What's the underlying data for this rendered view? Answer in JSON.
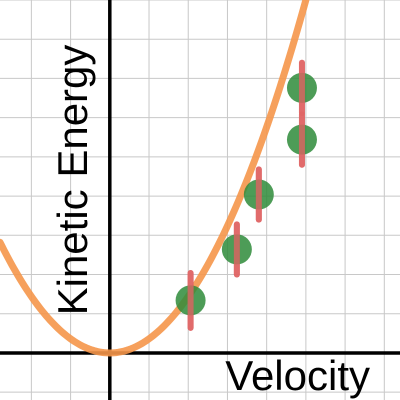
{
  "chart_data": {
    "type": "scatter",
    "xlabel": "Velocity",
    "ylabel": "Kinetic Energy",
    "xlim": [
      -1.4,
      3.7
    ],
    "ylim": [
      -0.6,
      4.5
    ],
    "grid": true,
    "colors": {
      "fit": "#f5964a",
      "point": "#2e8b3a",
      "error_bar": "#e06666",
      "axis": "#000000",
      "grid": "#c8c8c8"
    },
    "fit": {
      "type": "quadratic",
      "a": 0.72,
      "b": 0,
      "c": 0
    },
    "series": [
      {
        "points": [
          {
            "x": 1.03,
            "y": 0.67,
            "err": 0.35
          },
          {
            "x": 1.62,
            "y": 1.32,
            "err": 0.32
          },
          {
            "x": 1.9,
            "y": 2.02,
            "err": 0.32
          },
          {
            "x": 2.45,
            "y": 2.72,
            "err": 0.32
          },
          {
            "x": 2.45,
            "y": 3.38,
            "err": 0.32
          }
        ]
      }
    ]
  }
}
